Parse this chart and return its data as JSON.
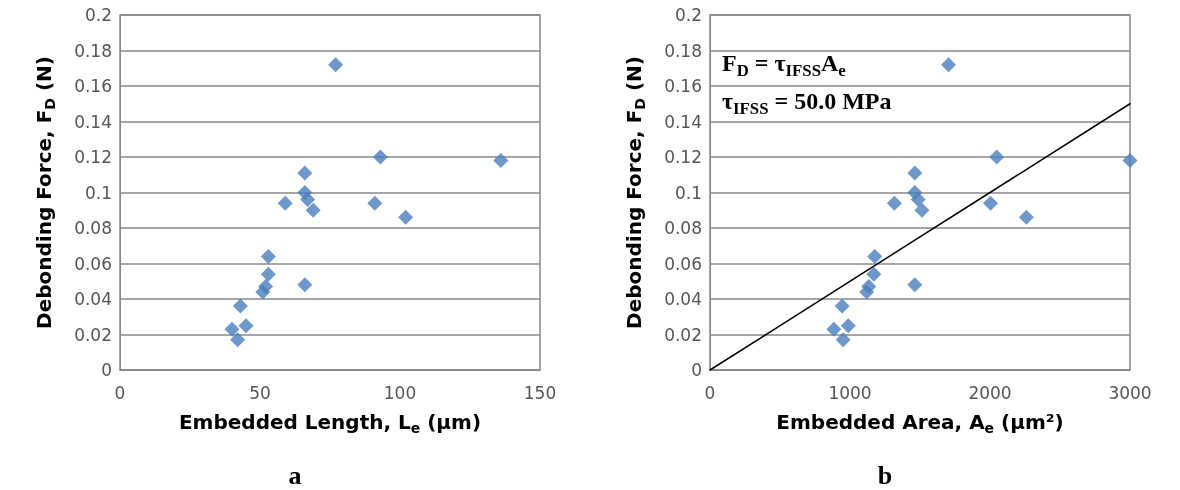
{
  "chart_data": [
    {
      "type": "scatter",
      "title": "a",
      "xlabel": "Embedded Length, L$_{e}$ (µm)",
      "ylabel": "Debonding Force, F$_{D}$ (N)",
      "xlim": [
        0,
        150
      ],
      "xticks": [
        0,
        50,
        100,
        150
      ],
      "ylim": [
        0,
        0.2
      ],
      "yticks": [
        0,
        0.02,
        0.04,
        0.06,
        0.08,
        0.1,
        0.12,
        0.14,
        0.16,
        0.18,
        0.2
      ],
      "grid": "y",
      "marker": "diamond",
      "series": [
        {
          "color": "#4a7ebb",
          "x": [
            40,
            42,
            43,
            45,
            51,
            52,
            53,
            53,
            59,
            66,
            66,
            66,
            67,
            69,
            77,
            91,
            93,
            102,
            136
          ],
          "values": [
            0.023,
            0.017,
            0.036,
            0.025,
            0.044,
            0.047,
            0.054,
            0.064,
            0.094,
            0.111,
            0.048,
            0.1,
            0.096,
            0.09,
            0.172,
            0.094,
            0.12,
            0.086,
            0.118
          ]
        }
      ]
    },
    {
      "type": "scatter",
      "title": "b",
      "xlabel": "Embedded Area, A$_{e}$ (µm²)",
      "ylabel": "Debonding Force, F$_{D}$ (N)",
      "xlim": [
        0,
        3000
      ],
      "xticks": [
        0,
        1000,
        2000,
        3000
      ],
      "ylim": [
        0,
        0.2
      ],
      "yticks": [
        0,
        0.02,
        0.04,
        0.06,
        0.08,
        0.1,
        0.12,
        0.14,
        0.16,
        0.18,
        0.2
      ],
      "grid": "y",
      "marker": "diamond",
      "annotations": [
        "F$_{D}$ = τ$_{IFSS}$A$_{e}$",
        "τ$_{IFSS}$ = 50.0 MPa"
      ],
      "series": [
        {
          "color": "#4a7ebb",
          "x": [
            885,
            951,
            944,
            988,
            1119,
            1134,
            1170,
            1177,
            1317,
            1463,
            1463,
            1463,
            1487,
            1514,
            1704,
            2004,
            2048,
            2260,
            3000
          ],
          "values": [
            0.023,
            0.017,
            0.036,
            0.025,
            0.044,
            0.047,
            0.054,
            0.064,
            0.094,
            0.111,
            0.048,
            0.1,
            0.096,
            0.09,
            0.172,
            0.094,
            0.12,
            0.086,
            0.118
          ]
        },
        {
          "type": "line",
          "color": "#000000",
          "marker": "none",
          "x": [
            0,
            3000
          ],
          "values": [
            0,
            0.15
          ]
        }
      ]
    }
  ]
}
